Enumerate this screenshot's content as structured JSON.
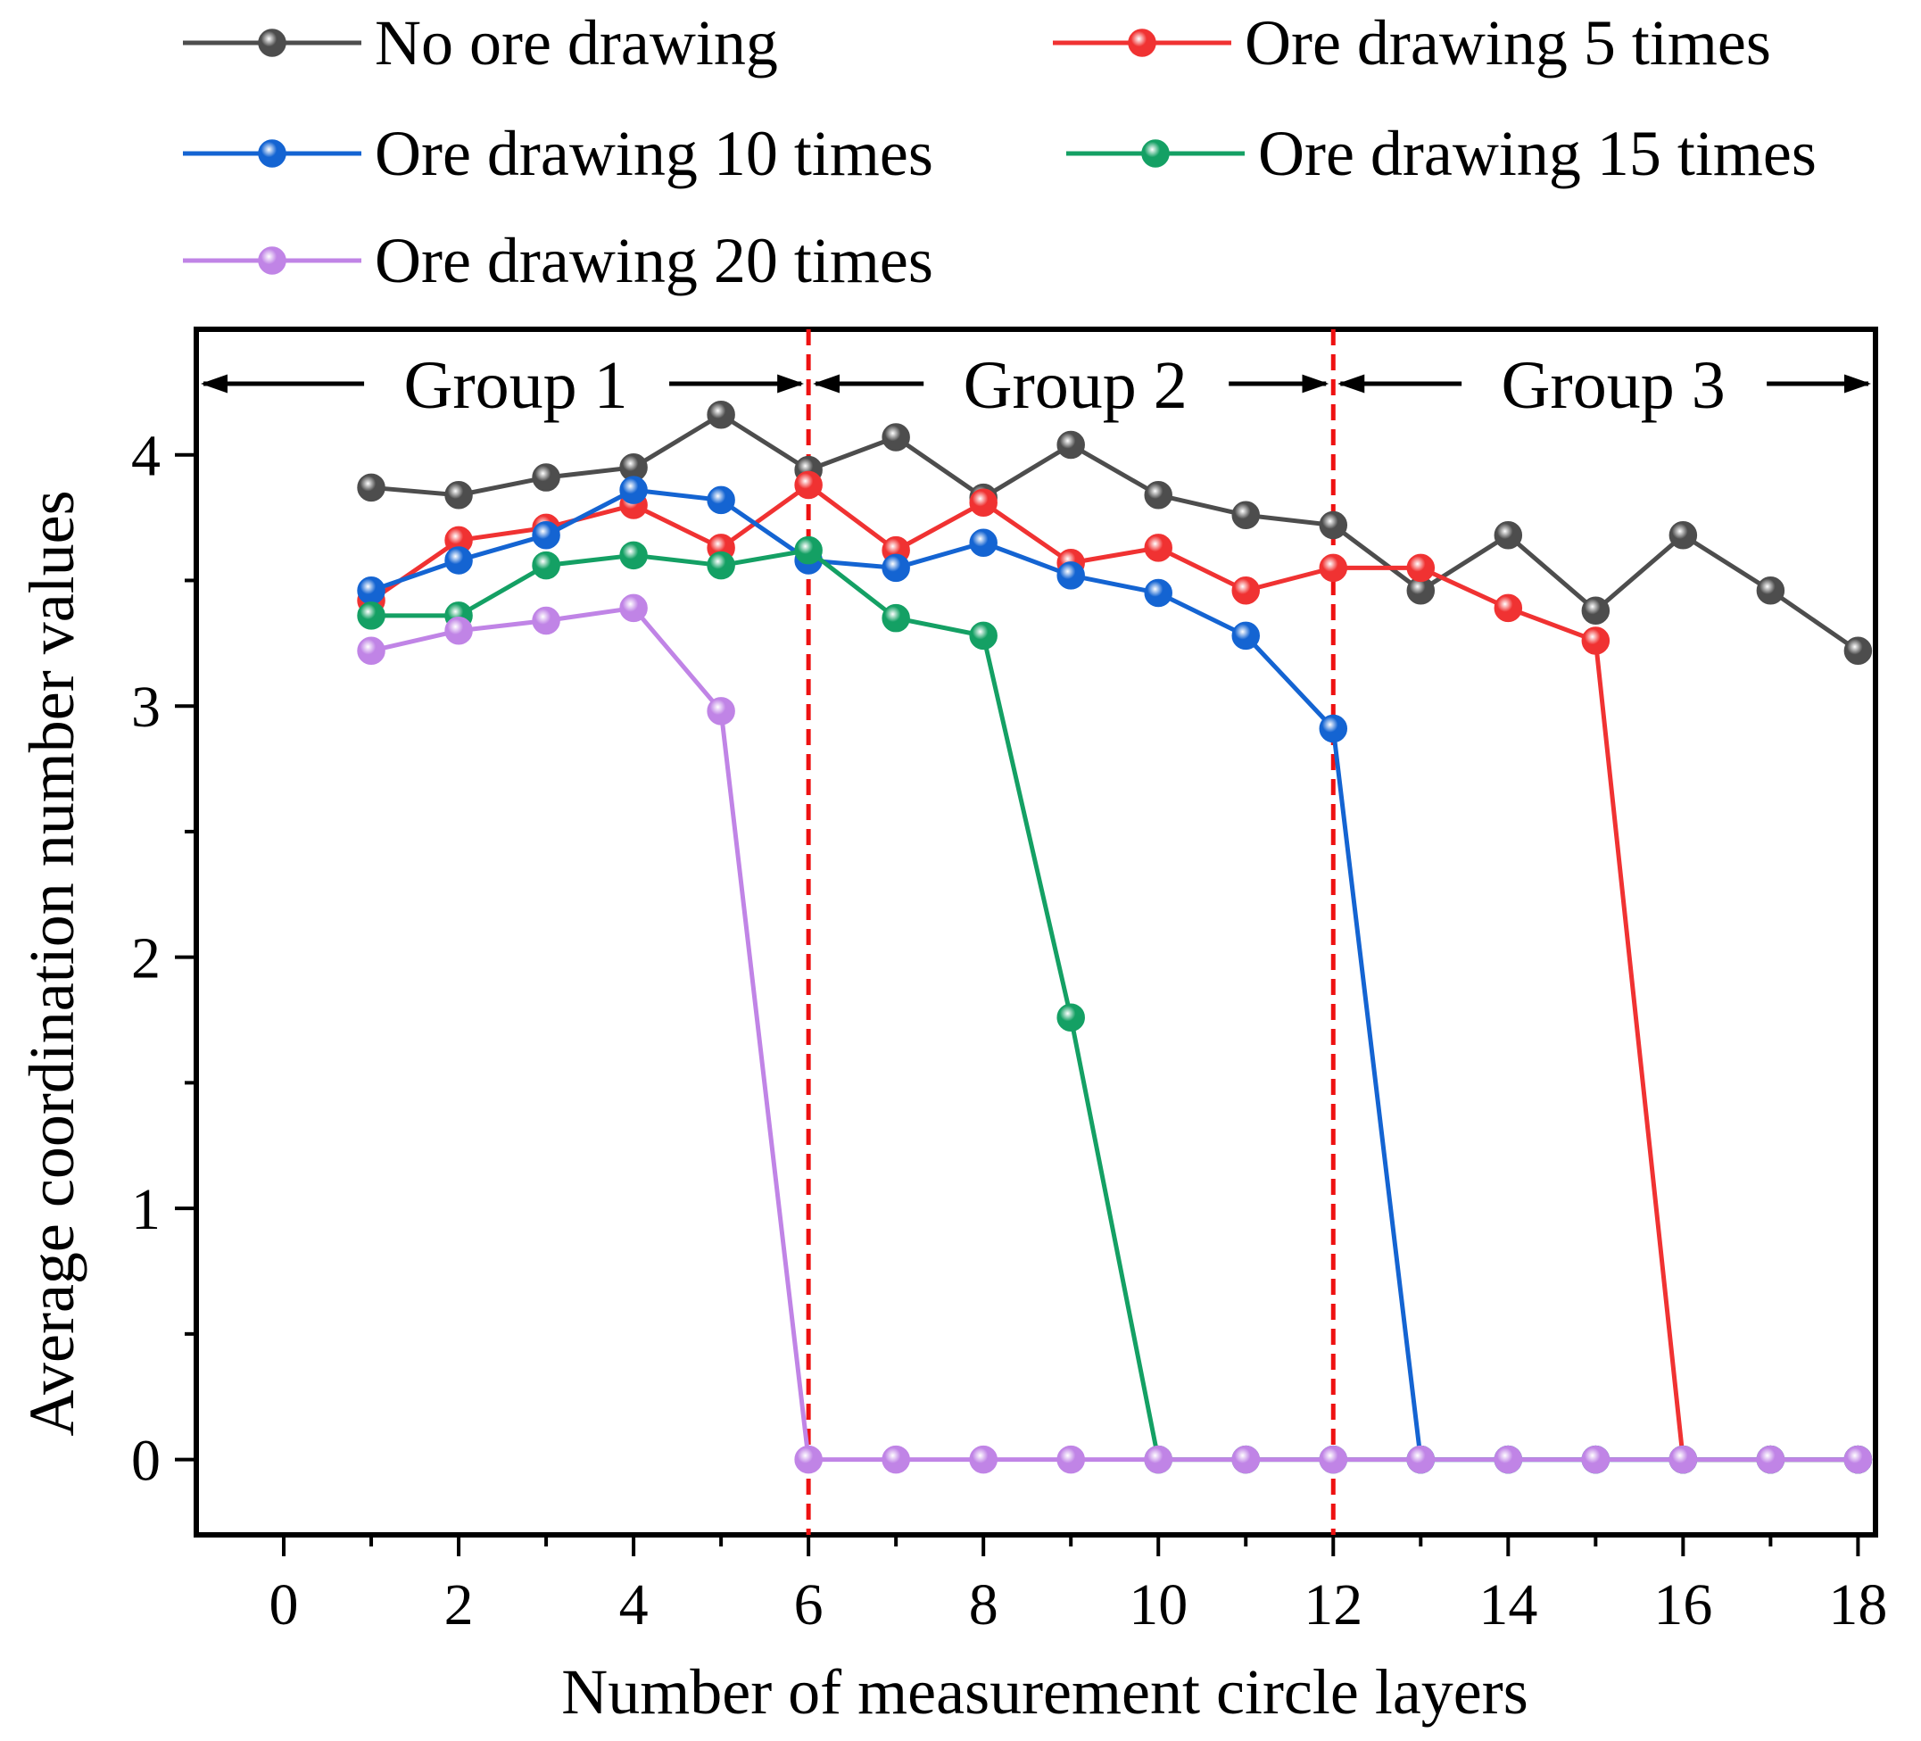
{
  "chart_data": {
    "type": "line",
    "xlabel": "Number of measurement circle layers",
    "ylabel": "Average coordination number values",
    "xlim": [
      -1,
      18.2
    ],
    "ylim": [
      -0.3,
      4.5
    ],
    "xticks": [
      "0",
      "2",
      "4",
      "6",
      "8",
      "10",
      "12",
      "14",
      "16",
      "18"
    ],
    "yticks": [
      "0",
      "1",
      "2",
      "3",
      "4"
    ],
    "group_dividers": [
      6,
      12
    ],
    "groups": [
      {
        "label": "Group 1",
        "from": -1,
        "to": 6
      },
      {
        "label": "Group 2",
        "from": 6,
        "to": 12
      },
      {
        "label": "Group 3",
        "from": 12,
        "to": 18.2
      }
    ],
    "series": [
      {
        "name": "No ore drawing",
        "color": "#4d4d4d",
        "x": [
          1,
          2,
          3,
          4,
          5,
          6,
          7,
          8,
          9,
          10,
          11,
          12,
          13,
          14,
          15,
          16,
          17,
          18
        ],
        "y": [
          3.87,
          3.84,
          3.91,
          3.95,
          4.16,
          3.94,
          4.07,
          3.83,
          4.04,
          3.84,
          3.76,
          3.72,
          3.46,
          3.68,
          3.38,
          3.68,
          3.46,
          3.22
        ]
      },
      {
        "name": "Ore drawing 5 times",
        "color": "#f03232",
        "x": [
          1,
          2,
          3,
          4,
          5,
          6,
          7,
          8,
          9,
          10,
          11,
          12,
          13,
          14,
          15,
          16,
          17,
          18
        ],
        "y": [
          3.42,
          3.66,
          3.71,
          3.8,
          3.63,
          3.88,
          3.62,
          3.81,
          3.57,
          3.63,
          3.46,
          3.55,
          3.55,
          3.39,
          3.26,
          0,
          0,
          0
        ]
      },
      {
        "name": "Ore drawing 10 times",
        "color": "#1464d2",
        "x": [
          1,
          2,
          3,
          4,
          5,
          6,
          7,
          8,
          9,
          10,
          11,
          12,
          13,
          14,
          15,
          16,
          17,
          18
        ],
        "y": [
          3.46,
          3.58,
          3.68,
          3.86,
          3.82,
          3.58,
          3.55,
          3.65,
          3.52,
          3.45,
          3.28,
          2.91,
          0,
          0,
          0,
          0,
          0,
          0
        ]
      },
      {
        "name": "Ore drawing 15 times",
        "color": "#14a064",
        "x": [
          1,
          2,
          3,
          4,
          5,
          6,
          7,
          8,
          9,
          10,
          11,
          12,
          13,
          14,
          15,
          16,
          17,
          18
        ],
        "y": [
          3.36,
          3.36,
          3.56,
          3.6,
          3.56,
          3.62,
          3.35,
          3.28,
          1.76,
          0,
          0,
          0,
          0,
          0,
          0,
          0,
          0,
          0
        ]
      },
      {
        "name": "Ore drawing 20 times",
        "color": "#c084e6",
        "x": [
          1,
          2,
          3,
          4,
          5,
          6,
          7,
          8,
          9,
          10,
          11,
          12,
          13,
          14,
          15,
          16,
          17,
          18
        ],
        "y": [
          3.22,
          3.3,
          3.34,
          3.39,
          2.98,
          0,
          0,
          0,
          0,
          0,
          0,
          0,
          0,
          0,
          0,
          0,
          0,
          0
        ]
      }
    ]
  }
}
